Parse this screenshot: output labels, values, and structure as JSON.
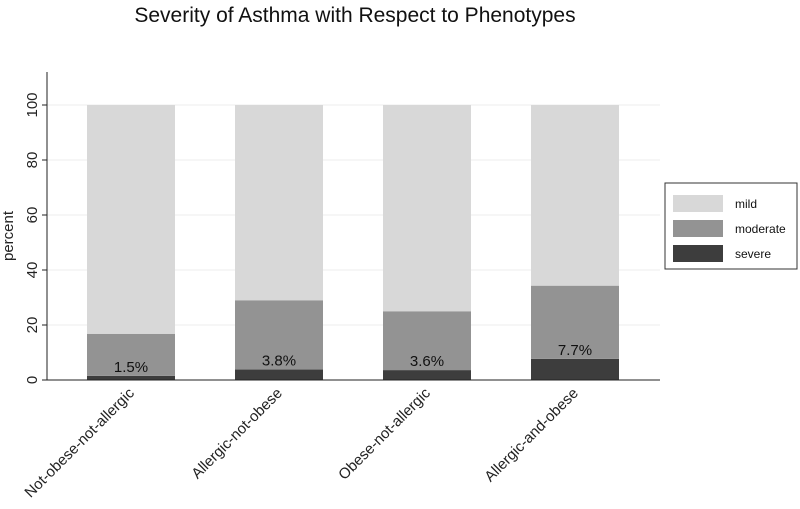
{
  "chart_data": {
    "type": "bar",
    "stacked": true,
    "title": "Severity of Asthma with Respect to Phenotypes",
    "ylabel": "percent",
    "xlabel": "",
    "ylim": [
      0,
      112
    ],
    "yticks": [
      0,
      20,
      40,
      60,
      80,
      100
    ],
    "grid": true,
    "legend_position": "right",
    "categories": [
      "Not-obese-not-allergic",
      "Allergic-not-obese",
      "Obese-not-allergic",
      "Allergic-and-obese"
    ],
    "series": [
      {
        "name": "severe",
        "values": [
          1.5,
          3.8,
          3.6,
          7.7
        ],
        "color": "#3d3d3d"
      },
      {
        "name": "moderate",
        "values": [
          15.3,
          25.2,
          21.4,
          26.6
        ],
        "color": "#939393"
      },
      {
        "name": "mild",
        "values": [
          83.2,
          71.0,
          75.0,
          65.7
        ],
        "color": "#d8d8d8"
      }
    ],
    "data_labels": [
      "1.5%",
      "3.8%",
      "3.6%",
      "7.7%"
    ],
    "legend_order": [
      "mild",
      "moderate",
      "severe"
    ]
  }
}
